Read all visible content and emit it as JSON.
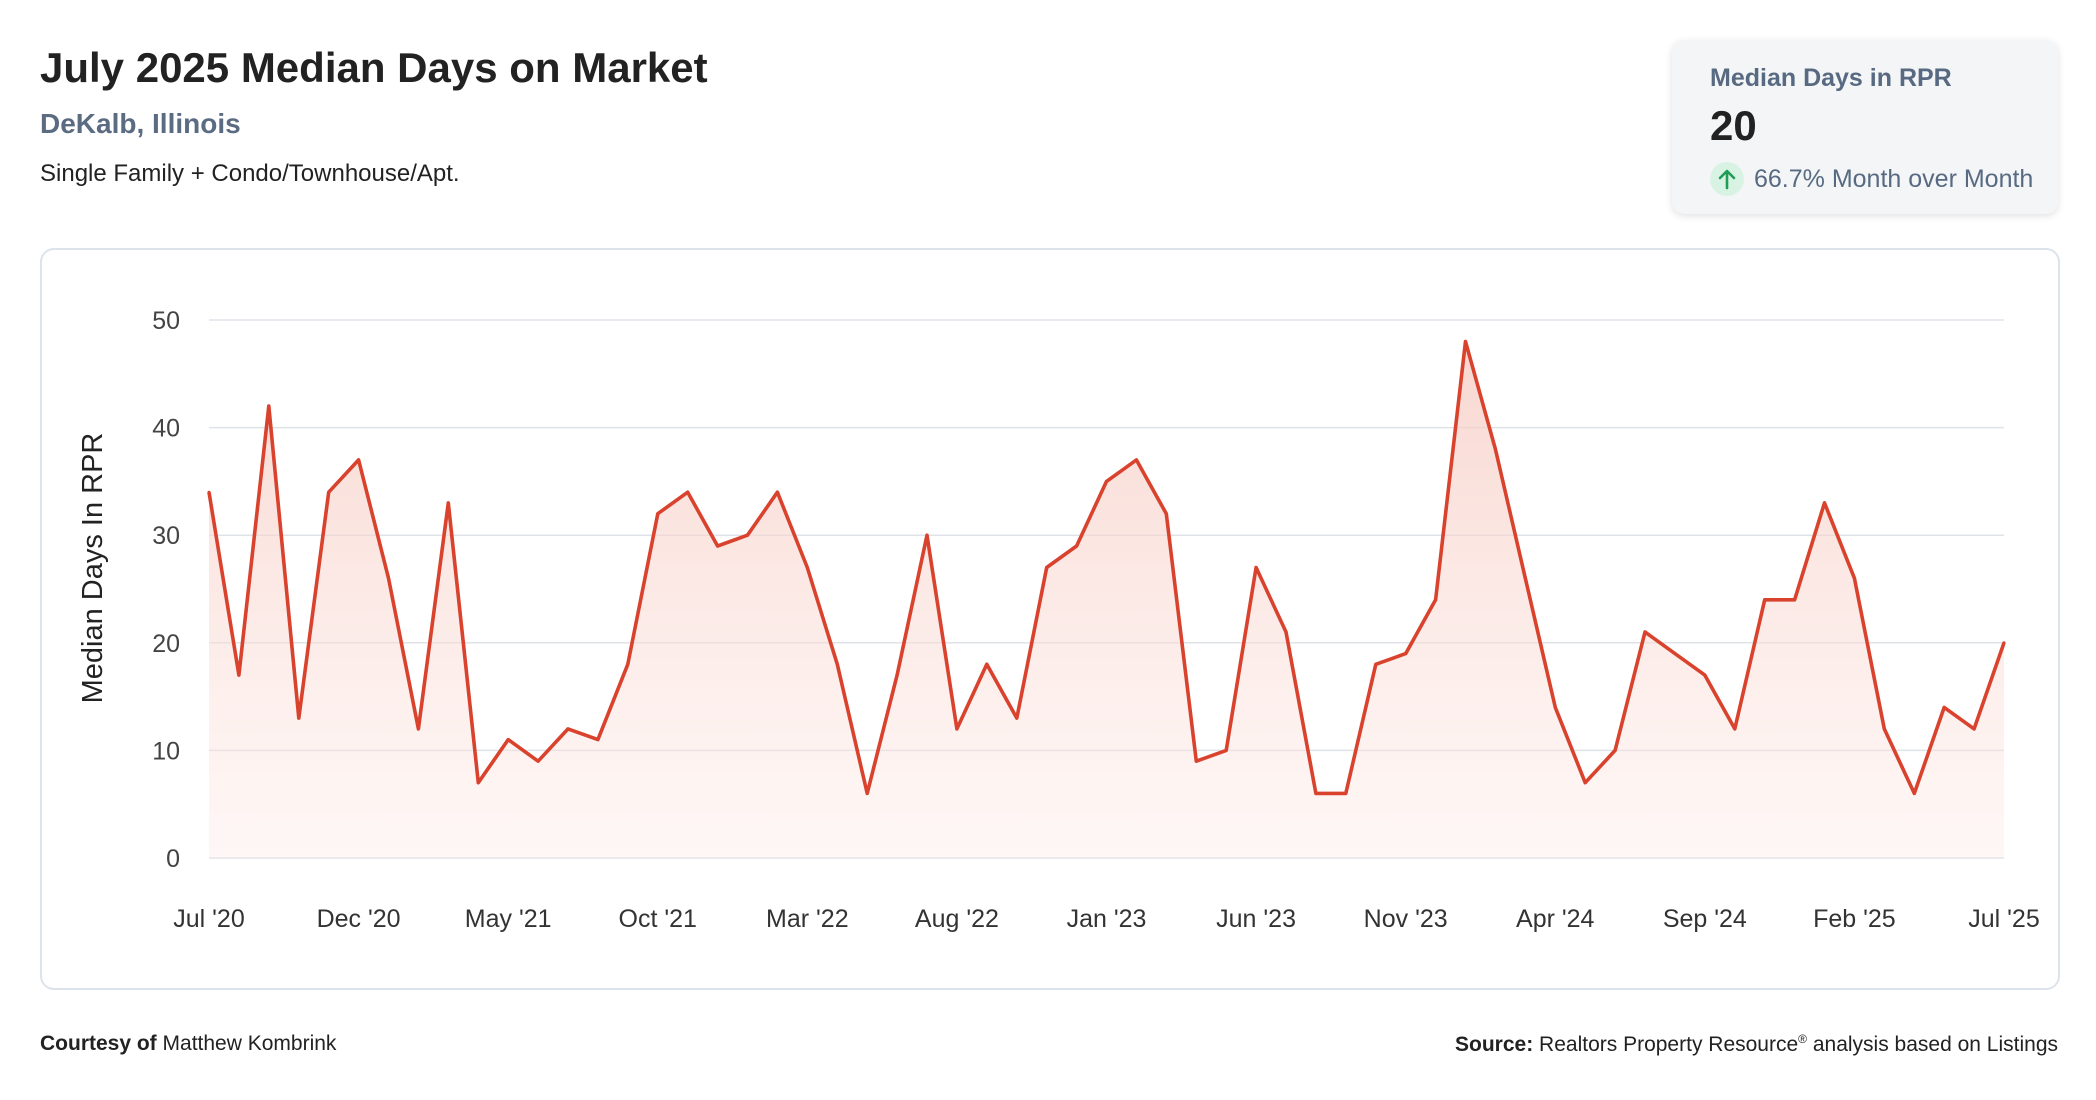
{
  "header": {
    "title": "July 2025 Median Days on Market",
    "location": "DeKalb, Illinois",
    "property_type": "Single Family + Condo/Townhouse/Apt."
  },
  "kpi": {
    "label": "Median Days in RPR",
    "value": "20",
    "change": "66.7% Month over Month",
    "change_icon": "arrow-up-icon",
    "up_color": "#1f9d55"
  },
  "colors": {
    "line": "#d9432e",
    "fill_top": "#f8d3cc",
    "grid": "#dfe3e8"
  },
  "chart_data": {
    "type": "area",
    "ylabel": "Median Days In RPR",
    "ylim": [
      0,
      50
    ],
    "yticks": [
      0,
      10,
      20,
      30,
      40,
      50
    ],
    "grid": true,
    "xtick_labels": [
      "Jul '20",
      "Dec '20",
      "May '21",
      "Oct '21",
      "Mar '22",
      "Aug '22",
      "Jan '23",
      "Jun '23",
      "Nov '23",
      "Apr '24",
      "Sep '24",
      "Feb '25",
      "Jul '25"
    ],
    "series": [
      {
        "name": "",
        "x": [
          "2020-07",
          "2020-08",
          "2020-09",
          "2020-10",
          "2020-11",
          "2020-12",
          "2021-01",
          "2021-02",
          "2021-03",
          "2021-04",
          "2021-05",
          "2021-06",
          "2021-07",
          "2021-08",
          "2021-09",
          "2021-10",
          "2021-11",
          "2021-12",
          "2022-01",
          "2022-02",
          "2022-03",
          "2022-04",
          "2022-05",
          "2022-06",
          "2022-07",
          "2022-08",
          "2022-09",
          "2022-10",
          "2022-11",
          "2022-12",
          "2023-01",
          "2023-02",
          "2023-03",
          "2023-04",
          "2023-05",
          "2023-06",
          "2023-07",
          "2023-08",
          "2023-09",
          "2023-10",
          "2023-11",
          "2023-12",
          "2024-01",
          "2024-02",
          "2024-03",
          "2024-04",
          "2024-05",
          "2024-06",
          "2024-07",
          "2024-08",
          "2024-09",
          "2024-10",
          "2024-11",
          "2024-12",
          "2025-01",
          "2025-02",
          "2025-03",
          "2025-04",
          "2025-05",
          "2025-06",
          "2025-07"
        ],
        "values": [
          34,
          17,
          42,
          13,
          34,
          37,
          26,
          12,
          33,
          7,
          11,
          9,
          12,
          11,
          18,
          32,
          34,
          29,
          30,
          34,
          27,
          18,
          6,
          17,
          30,
          12,
          18,
          13,
          27,
          29,
          35,
          37,
          32,
          9,
          10,
          27,
          21,
          6,
          6,
          18,
          19,
          24,
          48,
          38,
          26,
          14,
          7,
          10,
          21,
          19,
          17,
          12,
          24,
          24,
          33,
          26,
          12,
          6,
          14,
          12,
          20
        ]
      }
    ]
  },
  "footer": {
    "courtesy_label": "Courtesy of",
    "courtesy_name": "Matthew Kombrink",
    "source_label": "Source:",
    "source_name": "Realtors Property Resource",
    "source_mark": "®",
    "source_rest": "analysis based on Listings"
  }
}
